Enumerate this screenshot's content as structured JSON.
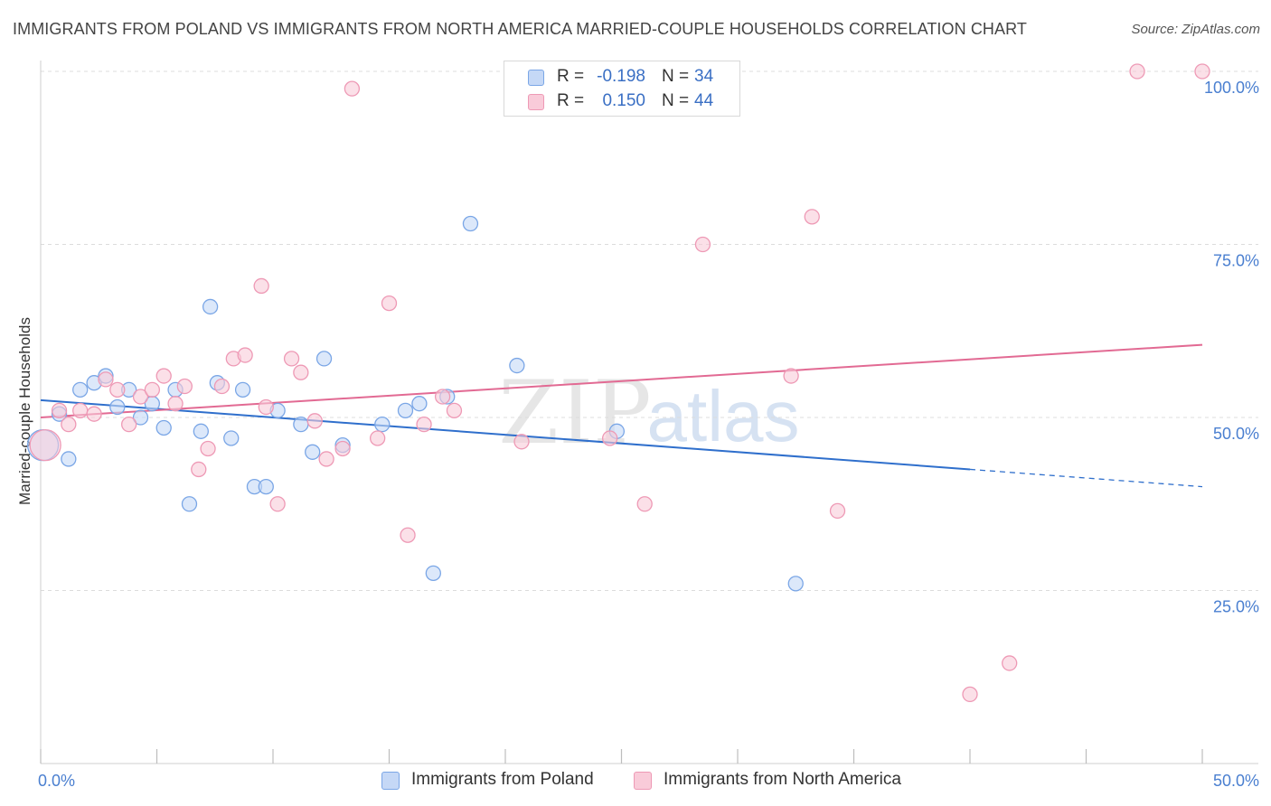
{
  "title": "IMMIGRANTS FROM POLAND VS IMMIGRANTS FROM NORTH AMERICA MARRIED-COUPLE HOUSEHOLDS CORRELATION CHART",
  "source": "Source: ZipAtlas.com",
  "watermark": {
    "zip": "ZIP",
    "atlas": "atlas"
  },
  "colors": {
    "poland_fill": "#c5d8f6",
    "poland_stroke": "#7aa6e6",
    "poland_line": "#2f6fcc",
    "na_fill": "#f9cbd9",
    "na_stroke": "#ee99b5",
    "na_line": "#e26a93",
    "tick_label": "#4a7fd0",
    "grid": "#dcdcdc"
  },
  "stats": {
    "poland": {
      "r_label": "R =",
      "r_value": "-0.198",
      "n_label": "N =",
      "n_value": "34"
    },
    "north_america": {
      "r_label": "R =",
      "r_value": "0.150",
      "n_label": "N =",
      "n_value": "44"
    }
  },
  "chart_data": {
    "type": "scatter",
    "title": "IMMIGRANTS FROM POLAND VS IMMIGRANTS FROM NORTH AMERICA MARRIED-COUPLE HOUSEHOLDS CORRELATION CHART",
    "xlabel": "",
    "ylabel": "Married-couple Households",
    "xlim": [
      0,
      50
    ],
    "ylim": [
      0,
      102
    ],
    "x_tick_labels": [
      {
        "value": 0,
        "label": "0.0%"
      },
      {
        "value": 50,
        "label": "50.0%"
      }
    ],
    "x_minor_ticks": [
      0,
      5,
      10,
      15,
      20,
      25,
      30,
      35,
      40,
      45,
      50
    ],
    "y_ticks": [
      {
        "value": 25,
        "label": "25.0%"
      },
      {
        "value": 50,
        "label": "50.0%"
      },
      {
        "value": 75,
        "label": "75.0%"
      },
      {
        "value": 100,
        "label": "100.0%"
      }
    ],
    "grid": true,
    "legend": "bottom-center",
    "series": [
      {
        "name": "Immigrants from Poland",
        "key": "poland",
        "trend": {
          "x0": 0,
          "y0": 52.5,
          "x1": 40,
          "y1": 42.5,
          "dash_x1": 50,
          "dash_y1": 40
        },
        "points": [
          {
            "x": 0.1,
            "y": 46.0,
            "big": true
          },
          {
            "x": 0.8,
            "y": 50.5
          },
          {
            "x": 1.2,
            "y": 44.0
          },
          {
            "x": 1.7,
            "y": 54.0
          },
          {
            "x": 2.3,
            "y": 55.0
          },
          {
            "x": 2.8,
            "y": 56.0
          },
          {
            "x": 3.3,
            "y": 51.5
          },
          {
            "x": 3.8,
            "y": 54.0
          },
          {
            "x": 4.3,
            "y": 50.0
          },
          {
            "x": 4.8,
            "y": 52.0
          },
          {
            "x": 5.3,
            "y": 48.5
          },
          {
            "x": 5.8,
            "y": 54.0
          },
          {
            "x": 6.4,
            "y": 37.5
          },
          {
            "x": 6.9,
            "y": 48.0
          },
          {
            "x": 7.3,
            "y": 66.0
          },
          {
            "x": 7.6,
            "y": 55.0
          },
          {
            "x": 8.2,
            "y": 47.0
          },
          {
            "x": 8.7,
            "y": 54.0
          },
          {
            "x": 9.2,
            "y": 40.0
          },
          {
            "x": 9.7,
            "y": 40.0
          },
          {
            "x": 10.2,
            "y": 51.0
          },
          {
            "x": 11.2,
            "y": 49.0
          },
          {
            "x": 11.7,
            "y": 45.0
          },
          {
            "x": 12.2,
            "y": 58.5
          },
          {
            "x": 13.0,
            "y": 46.0
          },
          {
            "x": 14.7,
            "y": 49.0
          },
          {
            "x": 15.7,
            "y": 51.0
          },
          {
            "x": 16.3,
            "y": 52.0
          },
          {
            "x": 16.9,
            "y": 27.5
          },
          {
            "x": 17.5,
            "y": 53.0
          },
          {
            "x": 18.5,
            "y": 78.0
          },
          {
            "x": 20.5,
            "y": 57.5
          },
          {
            "x": 24.8,
            "y": 48.0
          },
          {
            "x": 32.5,
            "y": 26.0
          }
        ]
      },
      {
        "name": "Immigrants from North America",
        "key": "north_america",
        "trend": {
          "x0": 0,
          "y0": 50.0,
          "x1": 50,
          "y1": 60.5
        },
        "points": [
          {
            "x": 0.2,
            "y": 46.0,
            "big": true
          },
          {
            "x": 0.8,
            "y": 51.0
          },
          {
            "x": 1.2,
            "y": 49.0
          },
          {
            "x": 1.7,
            "y": 51.0
          },
          {
            "x": 2.3,
            "y": 50.5
          },
          {
            "x": 2.8,
            "y": 55.5
          },
          {
            "x": 3.3,
            "y": 54.0
          },
          {
            "x": 3.8,
            "y": 49.0
          },
          {
            "x": 4.3,
            "y": 53.0
          },
          {
            "x": 4.8,
            "y": 54.0
          },
          {
            "x": 5.3,
            "y": 56.0
          },
          {
            "x": 5.8,
            "y": 52.0
          },
          {
            "x": 6.2,
            "y": 54.5
          },
          {
            "x": 6.8,
            "y": 42.5
          },
          {
            "x": 7.2,
            "y": 45.5
          },
          {
            "x": 7.8,
            "y": 54.5
          },
          {
            "x": 8.3,
            "y": 58.5
          },
          {
            "x": 8.8,
            "y": 59.0
          },
          {
            "x": 9.5,
            "y": 69.0
          },
          {
            "x": 9.7,
            "y": 51.5
          },
          {
            "x": 10.2,
            "y": 37.5
          },
          {
            "x": 10.8,
            "y": 58.5
          },
          {
            "x": 11.2,
            "y": 56.5
          },
          {
            "x": 11.8,
            "y": 49.5
          },
          {
            "x": 12.3,
            "y": 44.0
          },
          {
            "x": 13.0,
            "y": 45.5
          },
          {
            "x": 13.4,
            "y": 97.5
          },
          {
            "x": 14.5,
            "y": 47.0
          },
          {
            "x": 15.0,
            "y": 66.5
          },
          {
            "x": 15.8,
            "y": 33.0
          },
          {
            "x": 16.5,
            "y": 49.0
          },
          {
            "x": 17.3,
            "y": 53.0
          },
          {
            "x": 17.8,
            "y": 51.0
          },
          {
            "x": 20.7,
            "y": 46.5
          },
          {
            "x": 24.5,
            "y": 47.0
          },
          {
            "x": 26.0,
            "y": 37.5
          },
          {
            "x": 28.5,
            "y": 75.0
          },
          {
            "x": 32.3,
            "y": 56.0
          },
          {
            "x": 33.2,
            "y": 79.0
          },
          {
            "x": 34.3,
            "y": 36.5
          },
          {
            "x": 40.0,
            "y": 10.0
          },
          {
            "x": 41.7,
            "y": 14.5
          },
          {
            "x": 47.2,
            "y": 100.0
          },
          {
            "x": 50.0,
            "y": 100.0
          }
        ]
      }
    ]
  },
  "legend_items": [
    {
      "label": "Immigrants from Poland"
    },
    {
      "label": "Immigrants from North America"
    }
  ]
}
